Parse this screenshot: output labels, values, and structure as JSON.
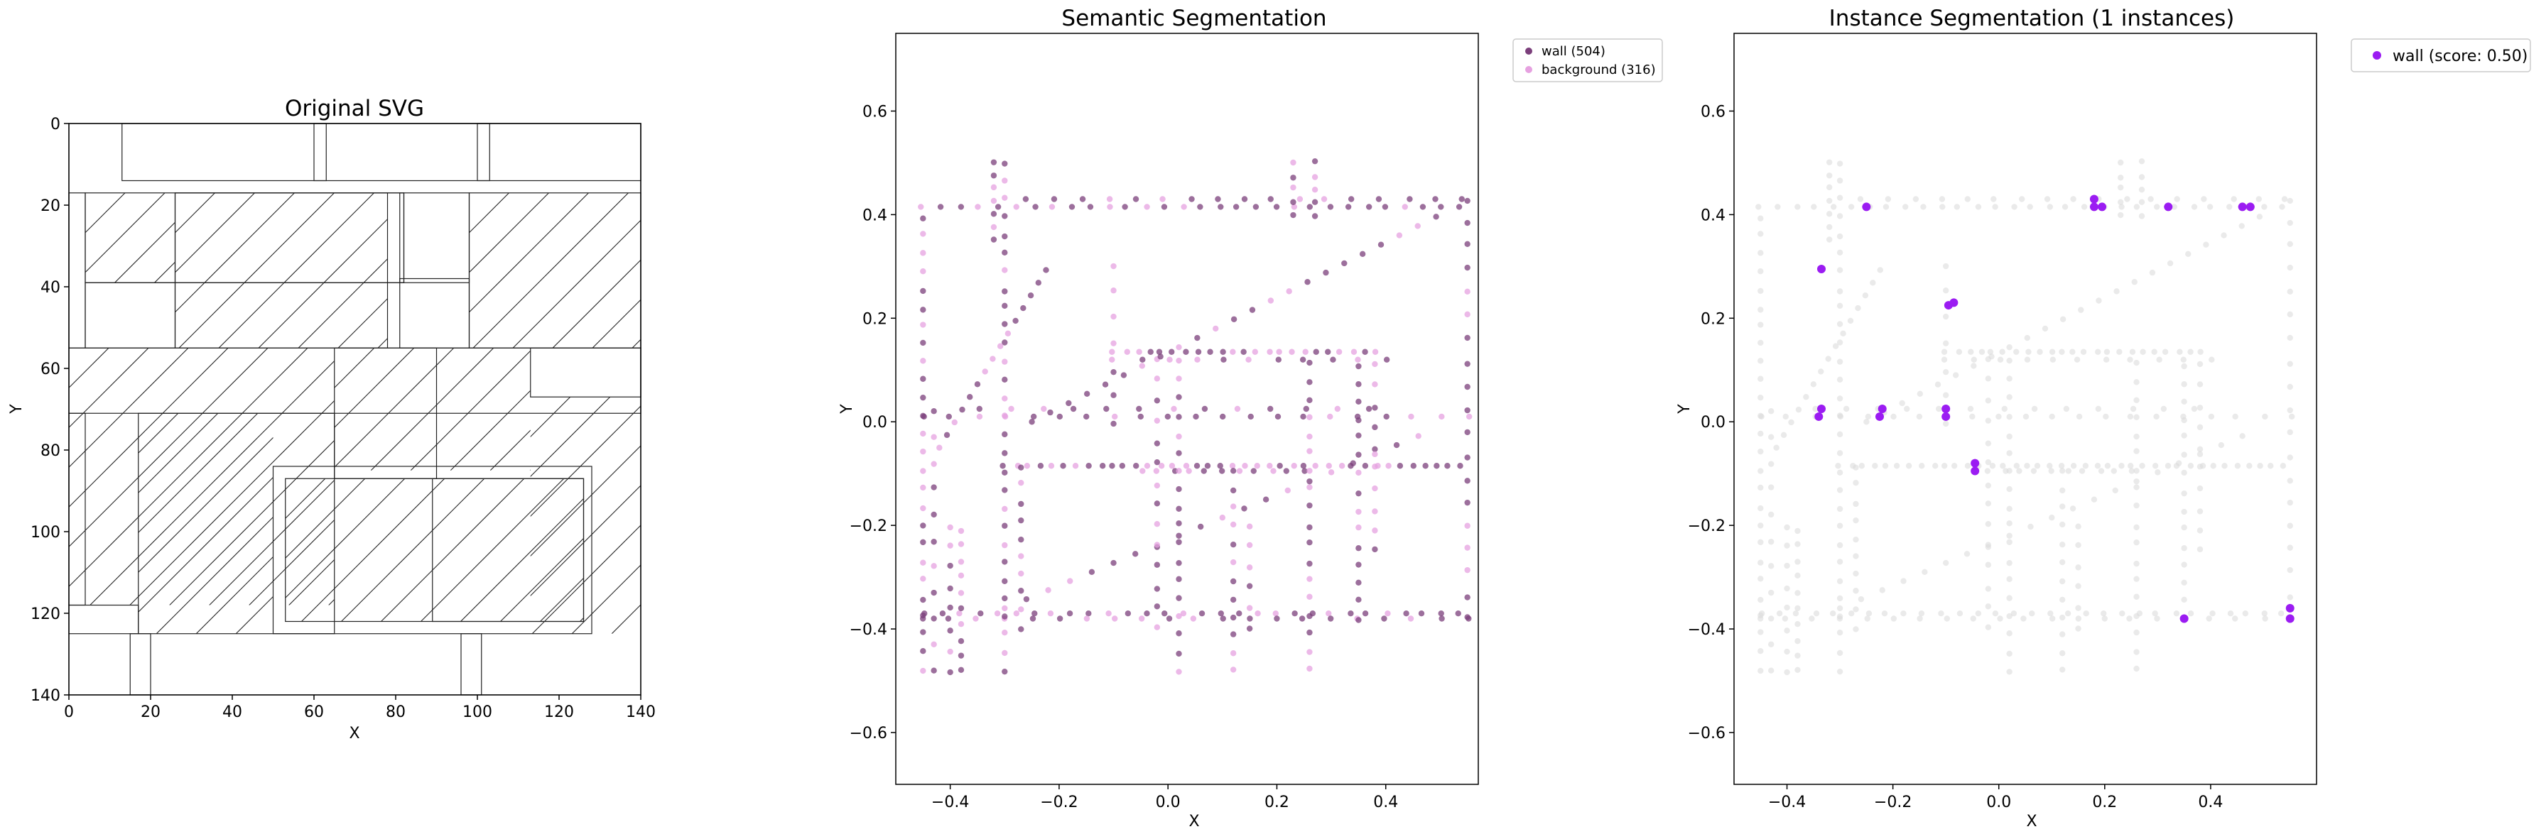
{
  "colors": {
    "wall": "#7b3f7b",
    "background": "#e6a1e0",
    "instance": "#9b1cf2",
    "unselected": "#d9d9d9",
    "svg_stroke": "#222222"
  },
  "chart_data": [
    {
      "type": "diagram",
      "title": "Original SVG",
      "xlabel": "X",
      "ylabel": "Y",
      "xlim": [
        0,
        140
      ],
      "ylim": [
        140,
        0
      ],
      "xticks": [
        "0",
        "20",
        "40",
        "60",
        "80",
        "100",
        "120",
        "140"
      ],
      "yticks": [
        "0",
        "20",
        "40",
        "60",
        "80",
        "100",
        "120",
        "140"
      ],
      "rects": [
        [
          0,
          0,
          140,
          140
        ],
        [
          13,
          0,
          127,
          14
        ],
        [
          60,
          0,
          3,
          14
        ],
        [
          100,
          0,
          3,
          14
        ],
        [
          4,
          17,
          78,
          22
        ],
        [
          26,
          17,
          56,
          22
        ],
        [
          81,
          17,
          17,
          22
        ],
        [
          0,
          17,
          4,
          38
        ],
        [
          4,
          39,
          22,
          16
        ],
        [
          26,
          17,
          52,
          38
        ],
        [
          81,
          38,
          17,
          17
        ],
        [
          98,
          17,
          42,
          38
        ],
        [
          0,
          55,
          140,
          16
        ],
        [
          65,
          55,
          25,
          32
        ],
        [
          113,
          55,
          27,
          12
        ],
        [
          0,
          71,
          4,
          47
        ],
        [
          17,
          71,
          48,
          54
        ],
        [
          50,
          84,
          78,
          41
        ],
        [
          53,
          87,
          73,
          35
        ],
        [
          89,
          87,
          37,
          35
        ],
        [
          0,
          118,
          17,
          7
        ],
        [
          15,
          125,
          5,
          15
        ],
        [
          96,
          125,
          5,
          15
        ]
      ],
      "hatch": [
        [
          4,
          17,
          22,
          22
        ],
        [
          26,
          17,
          52,
          38
        ],
        [
          98,
          17,
          42,
          38
        ],
        [
          0,
          55,
          65,
          63
        ],
        [
          65,
          55,
          48,
          30
        ],
        [
          113,
          67,
          27,
          58
        ],
        [
          17,
          71,
          33,
          54
        ],
        [
          53,
          87,
          73,
          35
        ]
      ]
    },
    {
      "type": "scatter",
      "title": "Semantic Segmentation",
      "xlabel": "X",
      "ylabel": "Y",
      "xlim": [
        -0.5,
        0.57
      ],
      "ylim": [
        -0.7,
        0.75
      ],
      "xticks": [
        -0.4,
        -0.2,
        0.0,
        0.2,
        0.4
      ],
      "yticks": [
        -0.6,
        -0.4,
        -0.2,
        0.0,
        0.2,
        0.4,
        0.6
      ],
      "legend_position": "outside-top-right",
      "series": [
        {
          "name": "wall (504)",
          "count": 504
        },
        {
          "name": "background (316)",
          "count": 316
        }
      ]
    },
    {
      "type": "scatter",
      "title": "Instance Segmentation (1 instances)",
      "xlabel": "X",
      "ylabel": "Y",
      "xlim": [
        -0.5,
        0.6
      ],
      "ylim": [
        -0.7,
        0.75
      ],
      "xticks": [
        -0.4,
        -0.2,
        0.0,
        0.2,
        0.4
      ],
      "yticks": [
        -0.6,
        -0.4,
        -0.2,
        0.0,
        0.2,
        0.4,
        0.6
      ],
      "legend_position": "outside-top-right",
      "series": [
        {
          "name": "wall (score: 0.50)",
          "points": [
            [
              -0.25,
              0.415
            ],
            [
              -0.335,
              0.295
            ],
            [
              -0.095,
              0.225
            ],
            [
              -0.085,
              0.23
            ],
            [
              -0.335,
              0.025
            ],
            [
              -0.34,
              0.01
            ],
            [
              -0.22,
              0.025
            ],
            [
              -0.225,
              0.01
            ],
            [
              -0.1,
              0.025
            ],
            [
              -0.1,
              0.01
            ],
            [
              -0.045,
              -0.08
            ],
            [
              -0.045,
              -0.095
            ],
            [
              0.18,
              0.43
            ],
            [
              0.18,
              0.415
            ],
            [
              0.195,
              0.415
            ],
            [
              0.32,
              0.415
            ],
            [
              0.46,
              0.415
            ],
            [
              0.475,
              0.415
            ],
            [
              0.35,
              -0.38
            ],
            [
              0.55,
              -0.36
            ],
            [
              0.55,
              -0.38
            ]
          ]
        }
      ]
    }
  ]
}
